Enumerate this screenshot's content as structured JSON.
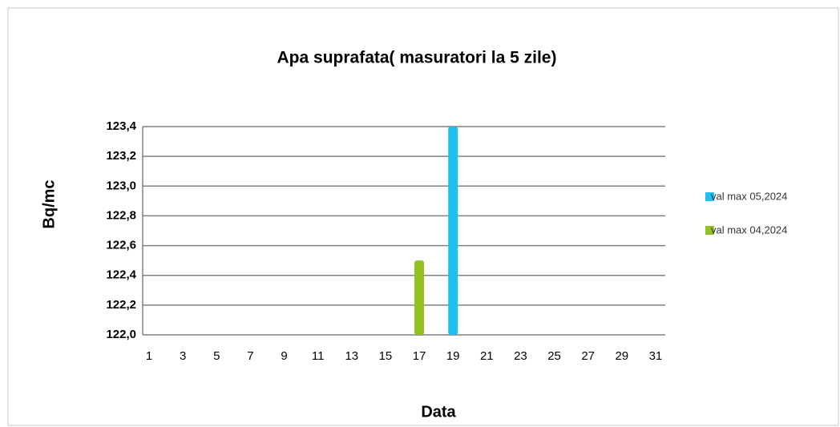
{
  "chart_data": {
    "type": "bar",
    "title": "Apa suprafata( masuratori la 5 zile)",
    "x_label": "Data",
    "y_label": "Bq/mc",
    "categories": [
      "1",
      "3",
      "5",
      "7",
      "9",
      "11",
      "13",
      "15",
      "17",
      "19",
      "21",
      "23",
      "25",
      "27",
      "29",
      "31"
    ],
    "series": [
      {
        "name": "val max 05,2024",
        "color": "#1ec0f0",
        "values": [
          null,
          null,
          null,
          null,
          null,
          null,
          null,
          null,
          null,
          123.4,
          null,
          null,
          null,
          null,
          null,
          null
        ]
      },
      {
        "name": "val max 04,2024",
        "color": "#92c020",
        "values": [
          null,
          null,
          null,
          null,
          null,
          null,
          null,
          null,
          122.5,
          null,
          null,
          null,
          null,
          null,
          null,
          null
        ]
      }
    ],
    "ylim": [
      122.0,
      123.4
    ],
    "yticks": [
      {
        "value": 122.0,
        "label": "122,0"
      },
      {
        "value": 122.2,
        "label": "122,2"
      },
      {
        "value": 122.4,
        "label": "122,4"
      },
      {
        "value": 122.6,
        "label": "122,6"
      },
      {
        "value": 122.8,
        "label": "122,8"
      },
      {
        "value": 123.0,
        "label": "123,0"
      },
      {
        "value": 123.2,
        "label": "123,2"
      },
      {
        "value": 123.4,
        "label": "123,4"
      }
    ],
    "grid": true,
    "legend": "right"
  }
}
